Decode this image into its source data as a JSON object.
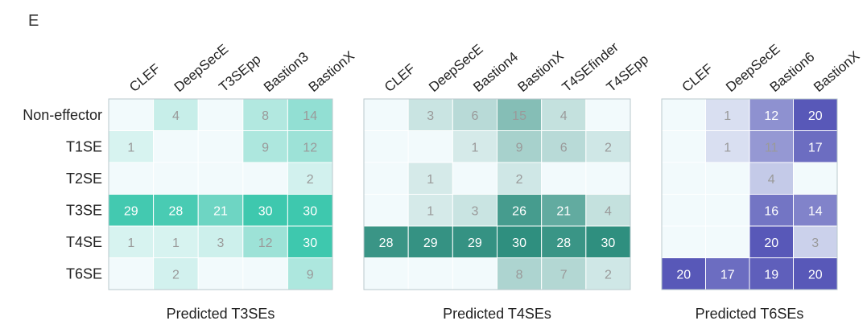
{
  "panel_label": "E",
  "colors": {
    "teal": "#2f8f7f",
    "green": "#3ec8ae",
    "purple": "#5858b8",
    "cell_bg": "#f2fafc",
    "border": "#b9c8cc",
    "text_dark": "#ffffff",
    "text_light": "#9a9a9a"
  },
  "chart_data": [
    {
      "type": "heatmap",
      "title": "Predicted T3SEs",
      "rows": [
        "Non-effector",
        "T1SE",
        "T2SE",
        "T3SE",
        "T4SE",
        "T6SE"
      ],
      "columns": [
        "CLEF",
        "DeepSecE",
        "T3SEpp",
        "Bastion3",
        "BastionX"
      ],
      "values": [
        [
          null,
          4,
          null,
          8,
          14
        ],
        [
          1,
          null,
          null,
          9,
          12
        ],
        [
          null,
          null,
          null,
          null,
          2
        ],
        [
          29,
          28,
          21,
          30,
          30
        ],
        [
          1,
          1,
          3,
          12,
          30
        ],
        [
          null,
          2,
          null,
          null,
          9
        ]
      ],
      "max": 30,
      "color": "#3ec8ae"
    },
    {
      "type": "heatmap",
      "title": "Predicted T4SEs",
      "rows": [
        "Non-effector",
        "T1SE",
        "T2SE",
        "T3SE",
        "T4SE",
        "T6SE"
      ],
      "columns": [
        "CLEF",
        "DeepSecE",
        "Bastion4",
        "BastionX",
        "T4SEfinder",
        "T4SEpp"
      ],
      "values": [
        [
          null,
          3,
          6,
          15,
          4,
          null
        ],
        [
          null,
          null,
          1,
          9,
          6,
          2
        ],
        [
          null,
          1,
          null,
          2,
          null,
          null
        ],
        [
          null,
          1,
          3,
          26,
          21,
          4
        ],
        [
          28,
          29,
          29,
          30,
          28,
          30
        ],
        [
          null,
          null,
          null,
          8,
          7,
          2
        ]
      ],
      "max": 30,
      "color": "#2f8f7f"
    },
    {
      "type": "heatmap",
      "title": "Predicted T6SEs",
      "rows": [
        "Non-effector",
        "T1SE",
        "T2SE",
        "T3SE",
        "T4SE",
        "T6SE"
      ],
      "columns": [
        "CLEF",
        "DeepSecE",
        "Bastion6",
        "BastionX"
      ],
      "values": [
        [
          null,
          1,
          12,
          20
        ],
        [
          null,
          1,
          11,
          17
        ],
        [
          null,
          null,
          4,
          null
        ],
        [
          null,
          null,
          16,
          14
        ],
        [
          null,
          null,
          20,
          3
        ],
        [
          20,
          17,
          19,
          20
        ]
      ],
      "max": 20,
      "color": "#5858b8"
    }
  ]
}
